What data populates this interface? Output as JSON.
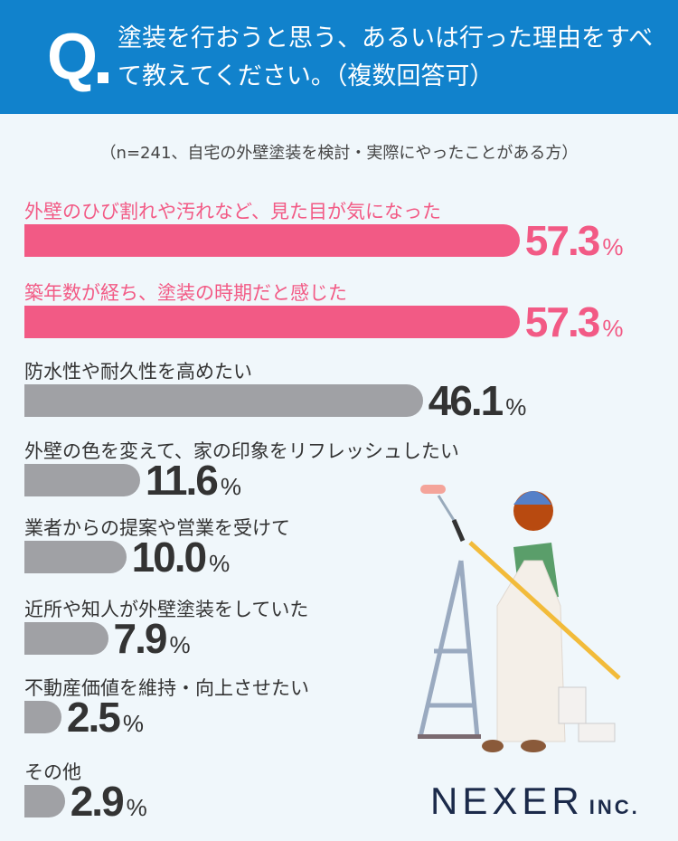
{
  "header": {
    "q": "Q",
    "title": "塗装を行おうと思う、あるいは行った理由をすべて教えてください。（複数回答可）"
  },
  "note": "（n=241、自宅の外壁塗装を検討・実際にやったことがある方）",
  "logo": {
    "name": "NEXER",
    "suffix": "INC."
  },
  "colors": {
    "header": "#1182cc",
    "highlight": "#f25a85",
    "bar": "#a0a1a5",
    "background": "#f0f7fb"
  },
  "chart_data": {
    "type": "bar",
    "orientation": "horizontal",
    "unit": "%",
    "categories": [
      "外壁のひび割れや汚れなど、見た目が気になった",
      "築年数が経ち、塗装の時期だと感じた",
      "防水性や耐久性を高めたい",
      "外壁の色を変えて、家の印象をリフレッシュしたい",
      "業者からの提案や営業を受けて",
      "近所や知人が外壁塗装をしていた",
      "不動産価値を維持・向上させたい",
      "その他"
    ],
    "values": [
      57.3,
      57.3,
      46.1,
      11.6,
      10.0,
      7.9,
      2.5,
      2.9
    ],
    "labels": [
      "57.3",
      "57.3",
      "46.1",
      "11.6",
      "10.0",
      "7.9",
      "2.5",
      "2.9"
    ],
    "highlighted": [
      true,
      true,
      false,
      false,
      false,
      false,
      false,
      false
    ]
  }
}
